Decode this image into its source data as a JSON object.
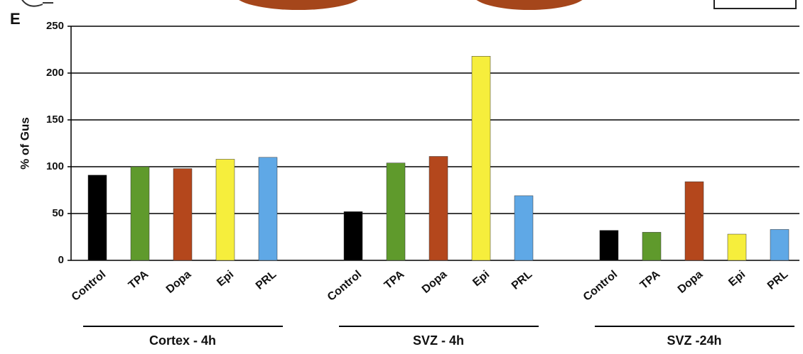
{
  "chart_data": {
    "type": "bar",
    "panel_label": "E",
    "ylabel": "% of Gus",
    "ylim": [
      0,
      250
    ],
    "yticks": [
      0,
      50,
      100,
      150,
      200,
      250
    ],
    "grid": true,
    "colors": [
      "#000000",
      "#5f9a2c",
      "#b4471c",
      "#f6ee3c",
      "#5fa8e6"
    ],
    "groups": [
      {
        "name": "Cortex - 4h",
        "categories": [
          "Control",
          "TPA",
          "Dopa",
          "Epi",
          "PRL"
        ],
        "values": [
          91,
          100,
          98,
          108,
          110
        ]
      },
      {
        "name": "SVZ - 4h",
        "categories": [
          "Control",
          "TPA",
          "Dopa",
          "Epi",
          "PRL"
        ],
        "values": [
          52,
          104,
          111,
          218,
          69
        ]
      },
      {
        "name": "SVZ -24h",
        "categories": [
          "Control",
          "TPA",
          "Dopa",
          "Epi",
          "PRL"
        ],
        "values": [
          32,
          30,
          84,
          28,
          33
        ]
      }
    ]
  }
}
